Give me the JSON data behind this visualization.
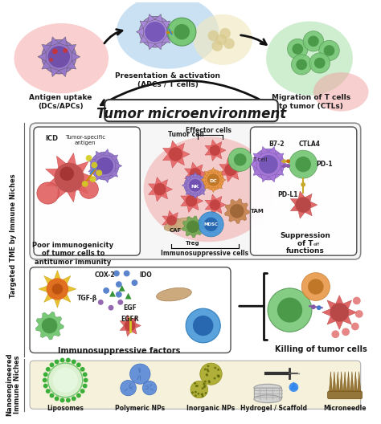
{
  "fig_width": 4.74,
  "fig_height": 5.28,
  "dpi": 100,
  "bg_color": "#ffffff",
  "title_tme": "Tumor microenvironment",
  "label_antigen_uptake": "Antigen uptake\n(DCs/APCs)",
  "label_presentation": "Presentation & activation\n(APCs / T cells)",
  "label_migration": "Migration of T cells\nto tumor (CTLs)",
  "label_poor_immuno": "Poor immunogenicity\nof tumor cells to\nantitumor immunity",
  "label_immuno_factors": "Immunosuppressive factors",
  "label_killing": "Killing of tumor cells",
  "label_targeted": "Targeted TME by Immune Niches",
  "label_nano": "Nanoengineered\nImmune Niches",
  "label_liposomes": "Liposomes",
  "label_polymeric": "Polymeric NPs",
  "label_inorganic": "Inorganic NPs",
  "label_hydrogel": "Hydrogel / Scaffold",
  "label_microneedle": "Microneedle",
  "color_pink_circle": "#f9c0c0",
  "color_blue_circle": "#b8d8f0",
  "color_green_circle": "#c0e8c0",
  "color_beige_circle": "#f0e8c0",
  "color_nano_bg": "#f5f0d8",
  "color_tme_bg": "#f0f0f0",
  "text_color": "#1a1a1a",
  "arrow_color": "#111111"
}
